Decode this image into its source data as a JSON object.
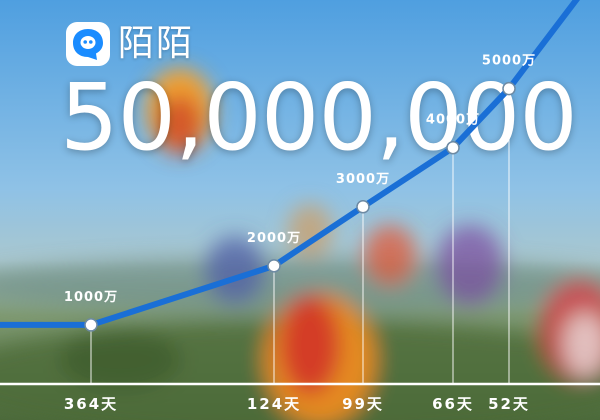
{
  "brand": {
    "name": "陌陌",
    "logo_icon": "momo-chat-bubble-icon",
    "accent_color": "#1a8cff"
  },
  "headline": "50,000,000",
  "chart_data": {
    "type": "line",
    "title": "",
    "xlabel": "",
    "ylabel": "",
    "series": [
      {
        "values": [
          1000,
          2000,
          3000,
          4000,
          5000
        ]
      }
    ],
    "point_labels": [
      "1000万",
      "2000万",
      "3000万",
      "4000万",
      "5000万"
    ],
    "interval_labels": [
      "364天",
      "124天",
      "99天",
      "66天",
      "52天"
    ],
    "ylim": [
      0,
      6500
    ],
    "line_color": "#1a6fd6",
    "grid": false,
    "legend": "none"
  }
}
